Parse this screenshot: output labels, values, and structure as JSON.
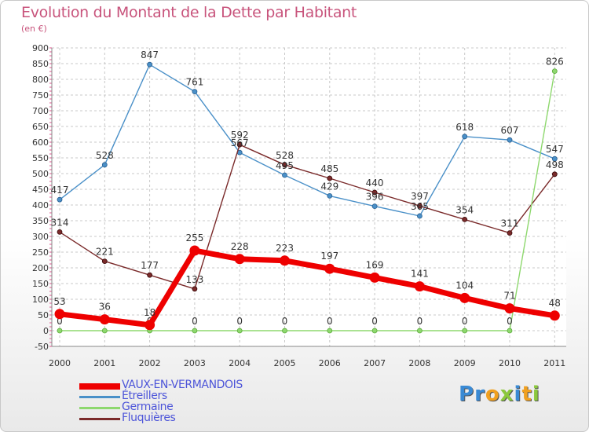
{
  "header": {
    "title": "Evolution du Montant de la Dette par Habitant",
    "unit": "(en €)"
  },
  "logo": {
    "letters": [
      {
        "char": "P",
        "color": "#3a8ad4"
      },
      {
        "char": "r",
        "color": "#3a8ad4"
      },
      {
        "char": "o",
        "color": "#f0a020"
      },
      {
        "char": "x",
        "color": "#8cc83c"
      },
      {
        "char": "i",
        "color": "#3a8ad4"
      },
      {
        "char": "t",
        "color": "#f0a020"
      },
      {
        "char": "i",
        "color": "#8cc83c"
      }
    ]
  },
  "chart_data": {
    "type": "line",
    "title": "Evolution du Montant de la Dette par Habitant",
    "subtitle": "(en €)",
    "x": [
      "2000",
      "2001",
      "2002",
      "2003",
      "2004",
      "2005",
      "2006",
      "2007",
      "2008",
      "2009",
      "2010",
      "2011"
    ],
    "ylim": [
      -50,
      900
    ],
    "yticks": [
      -50,
      0,
      50,
      100,
      150,
      200,
      250,
      300,
      350,
      400,
      450,
      500,
      550,
      600,
      650,
      700,
      750,
      800,
      850,
      900
    ],
    "grid": true,
    "legend_position": "bottom-left",
    "series": [
      {
        "name": "Étreillers",
        "color": "#4a90c8",
        "values": [
          417,
          528,
          847,
          761,
          567,
          495,
          429,
          396,
          365,
          618,
          607,
          547
        ]
      },
      {
        "name": "Fluquières",
        "color": "#7a2a2a",
        "values": [
          314,
          221,
          177,
          133,
          592,
          528,
          485,
          440,
          397,
          354,
          311,
          498
        ]
      },
      {
        "name": "Germaine",
        "color": "#8ed86e",
        "values": [
          0,
          0,
          0,
          0,
          0,
          0,
          0,
          0,
          0,
          0,
          0,
          826
        ]
      },
      {
        "name": "VAUX-EN-VERMANDOIS",
        "color": "#ee0000",
        "values": [
          53,
          36,
          18,
          255,
          228,
          223,
          197,
          169,
          141,
          104,
          71,
          48
        ]
      }
    ],
    "legend_order": [
      "VAUX-EN-VERMANDOIS",
      "Étreillers",
      "Germaine",
      "Fluquières"
    ]
  }
}
